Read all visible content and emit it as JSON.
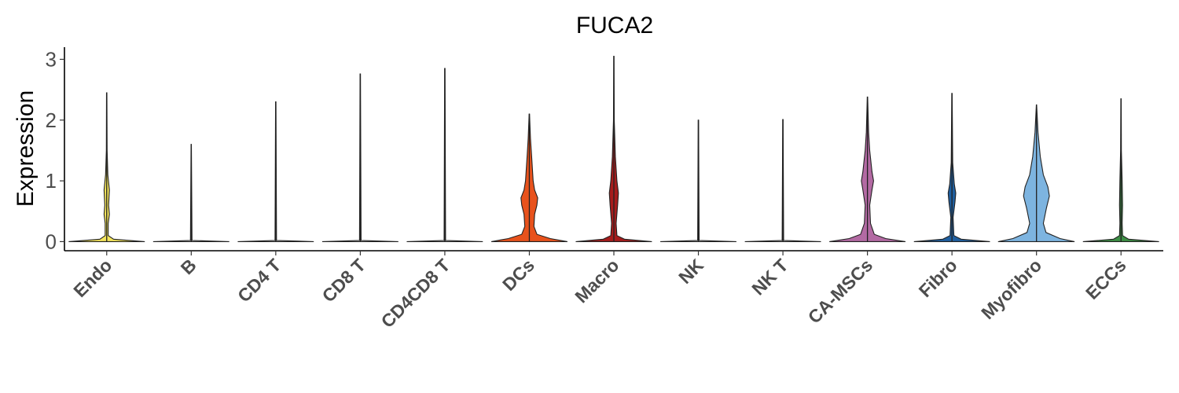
{
  "chart_data": {
    "type": "violin",
    "title": "FUCA2",
    "xlabel": "",
    "ylabel": "Expression",
    "ylim": [
      -0.15,
      3.2
    ],
    "yticks": [
      "0",
      "1",
      "2",
      "3"
    ],
    "grid": false,
    "legend": "none",
    "categories": [
      "Endo",
      "B",
      "CD4 T",
      "CD8 T",
      "CD4CD8 T",
      "DCs",
      "Macro",
      "NK",
      "NK T",
      "CA-MSCs",
      "Fibro",
      "Myofibro",
      "ECCs"
    ],
    "colors": [
      "#f4e55c",
      "#d9d9d9",
      "#d9d9d9",
      "#d9d9d9",
      "#d9d9d9",
      "#e8521c",
      "#a61c1c",
      "#d9d9d9",
      "#d9d9d9",
      "#b36aa3",
      "#1f5fa0",
      "#7db4e0",
      "#3d8f45"
    ],
    "max_values": [
      2.45,
      1.6,
      2.3,
      2.76,
      2.85,
      2.1,
      3.05,
      2.0,
      2.01,
      2.38,
      2.44,
      2.25,
      2.35
    ],
    "density_profiles": [
      [
        [
          0.0,
          1.0
        ],
        [
          0.04,
          0.18
        ],
        [
          0.1,
          0.04
        ],
        [
          0.3,
          0.04
        ],
        [
          0.45,
          0.07
        ],
        [
          0.6,
          0.05
        ],
        [
          0.85,
          0.07
        ],
        [
          1.1,
          0.03
        ],
        [
          1.5,
          0.01
        ],
        [
          2.45,
          0.005
        ]
      ],
      [
        [
          0.0,
          1.0
        ],
        [
          0.02,
          0.02
        ],
        [
          1.6,
          0.005
        ]
      ],
      [
        [
          0.0,
          1.0
        ],
        [
          0.02,
          0.02
        ],
        [
          2.3,
          0.005
        ]
      ],
      [
        [
          0.0,
          1.0
        ],
        [
          0.02,
          0.02
        ],
        [
          2.76,
          0.005
        ]
      ],
      [
        [
          0.0,
          1.0
        ],
        [
          0.02,
          0.02
        ],
        [
          2.85,
          0.005
        ]
      ],
      [
        [
          0.0,
          1.0
        ],
        [
          0.05,
          0.55
        ],
        [
          0.12,
          0.2
        ],
        [
          0.25,
          0.12
        ],
        [
          0.45,
          0.14
        ],
        [
          0.6,
          0.2
        ],
        [
          0.72,
          0.22
        ],
        [
          0.85,
          0.14
        ],
        [
          1.0,
          0.1
        ],
        [
          1.4,
          0.06
        ],
        [
          1.7,
          0.03
        ],
        [
          2.1,
          0.005
        ]
      ],
      [
        [
          0.0,
          1.0
        ],
        [
          0.04,
          0.28
        ],
        [
          0.1,
          0.08
        ],
        [
          0.3,
          0.06
        ],
        [
          0.6,
          0.1
        ],
        [
          0.8,
          0.12
        ],
        [
          1.0,
          0.08
        ],
        [
          1.4,
          0.04
        ],
        [
          2.0,
          0.01
        ],
        [
          3.05,
          0.005
        ]
      ],
      [
        [
          0.0,
          1.0
        ],
        [
          0.02,
          0.02
        ],
        [
          2.0,
          0.005
        ]
      ],
      [
        [
          0.0,
          1.0
        ],
        [
          0.02,
          0.02
        ],
        [
          2.01,
          0.005
        ]
      ],
      [
        [
          0.0,
          1.0
        ],
        [
          0.05,
          0.48
        ],
        [
          0.12,
          0.18
        ],
        [
          0.3,
          0.08
        ],
        [
          0.6,
          0.06
        ],
        [
          0.85,
          0.12
        ],
        [
          1.0,
          0.16
        ],
        [
          1.15,
          0.12
        ],
        [
          1.5,
          0.06
        ],
        [
          1.8,
          0.03
        ],
        [
          2.38,
          0.005
        ]
      ],
      [
        [
          0.0,
          1.0
        ],
        [
          0.04,
          0.24
        ],
        [
          0.1,
          0.05
        ],
        [
          0.4,
          0.03
        ],
        [
          0.65,
          0.08
        ],
        [
          0.8,
          0.1
        ],
        [
          0.95,
          0.06
        ],
        [
          1.3,
          0.02
        ],
        [
          2.44,
          0.005
        ]
      ],
      [
        [
          0.0,
          1.0
        ],
        [
          0.05,
          0.62
        ],
        [
          0.15,
          0.25
        ],
        [
          0.3,
          0.18
        ],
        [
          0.55,
          0.26
        ],
        [
          0.75,
          0.34
        ],
        [
          0.9,
          0.3
        ],
        [
          1.1,
          0.18
        ],
        [
          1.4,
          0.1
        ],
        [
          1.8,
          0.04
        ],
        [
          2.25,
          0.005
        ]
      ],
      [
        [
          0.0,
          1.0
        ],
        [
          0.04,
          0.2
        ],
        [
          0.1,
          0.04
        ],
        [
          0.3,
          0.03
        ],
        [
          0.6,
          0.04
        ],
        [
          1.0,
          0.03
        ],
        [
          1.5,
          0.01
        ],
        [
          2.35,
          0.005
        ]
      ]
    ]
  }
}
